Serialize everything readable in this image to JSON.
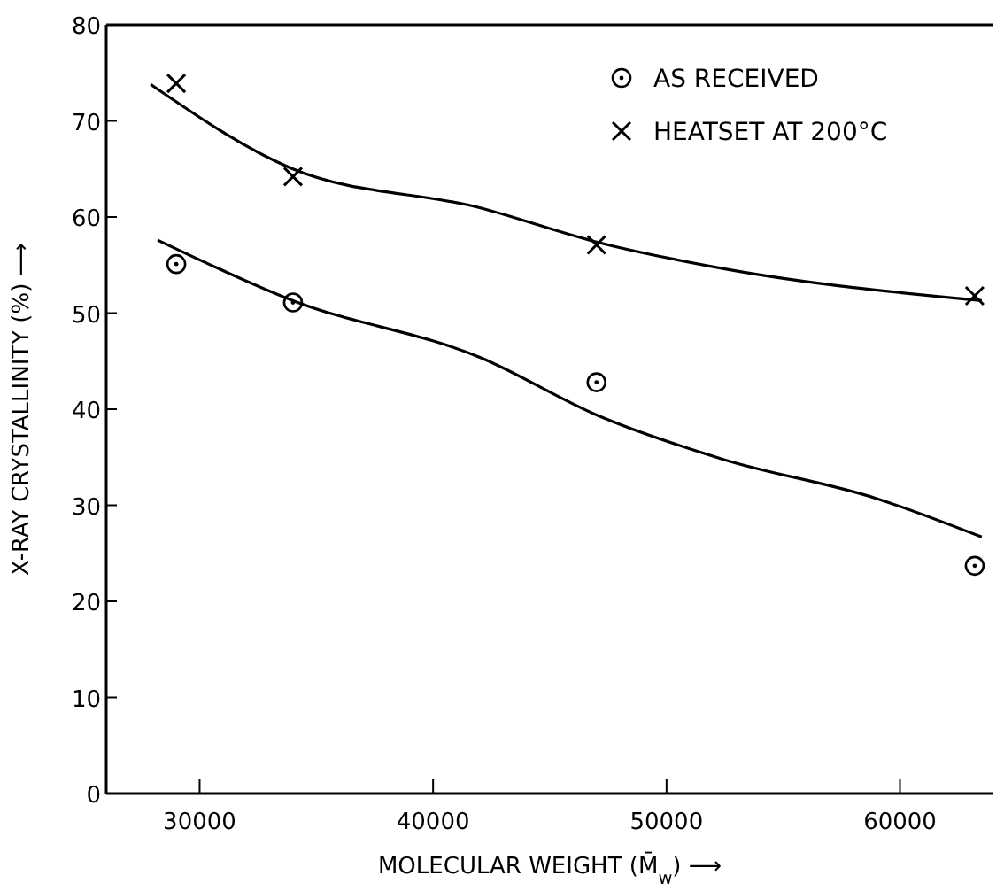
{
  "chart_data": {
    "type": "scatter",
    "xlabel": "MOLECULAR WEIGHT (M̄$_{w}$) ⟶",
    "ylabel": "X-RAY CRYSTALLINITY (%) ⟶",
    "xlim": [
      26000,
      64000
    ],
    "ylim": [
      0,
      80
    ],
    "xticks": [
      30000,
      40000,
      50000,
      60000
    ],
    "yticks": [
      0,
      10,
      20,
      30,
      40,
      50,
      60,
      70,
      80
    ],
    "grid": false,
    "legend": "top right",
    "series": [
      {
        "name": "AS RECEIVED",
        "color": "#000000",
        "marker": "circle",
        "x": [
          29000,
          34000,
          47000,
          63200
        ],
        "values": [
          55.1,
          51.1,
          42.8,
          23.7
        ]
      },
      {
        "name": "HEATSET AT 200°C",
        "color": "#000000",
        "marker": "cross",
        "x": [
          29000,
          34000,
          47000,
          63200
        ],
        "values": [
          73.9,
          64.2,
          57.1,
          51.8
        ]
      },
      {
        "type": "line",
        "color": "#000000",
        "marker": "none",
        "x": [
          27900,
          33900,
          42100,
          47000,
          52500,
          63500
        ],
        "values": [
          73.8,
          65.1,
          60.9,
          57.4,
          54.6,
          51.3
        ]
      },
      {
        "type": "line",
        "color": "#000000",
        "marker": "none",
        "x": [
          28200,
          34000,
          42100,
          47000,
          52400,
          59000,
          63500
        ],
        "values": [
          57.6,
          51.3,
          45.3,
          39.4,
          34.8,
          30.7,
          26.7
        ]
      }
    ]
  }
}
